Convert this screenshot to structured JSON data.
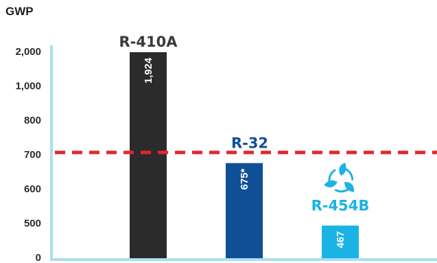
{
  "chart_data": {
    "type": "bar",
    "ylabel": "GWP",
    "y_ticks": [
      "0",
      "500",
      "600",
      "700",
      "800",
      "1,000",
      "2,000"
    ],
    "categories": [
      "R-410A",
      "R-32",
      "R-454B"
    ],
    "values": [
      1924,
      675,
      467
    ],
    "value_labels": [
      "1,924",
      "675*",
      "467"
    ],
    "bar_colors": [
      "#2b2b2b",
      "#0f4f96",
      "#1bb2e6"
    ],
    "label_colors": [
      "#3a3a3a",
      "#0f4f96",
      "#1bb2e6"
    ],
    "reference_line": {
      "value": 700,
      "color": "#e1262d",
      "style": "dashed"
    },
    "axis_color": "#a9dff2",
    "scale": "non-linear (broken axis)",
    "grid": false,
    "icons": [
      "recycle-leaves-icon"
    ]
  }
}
